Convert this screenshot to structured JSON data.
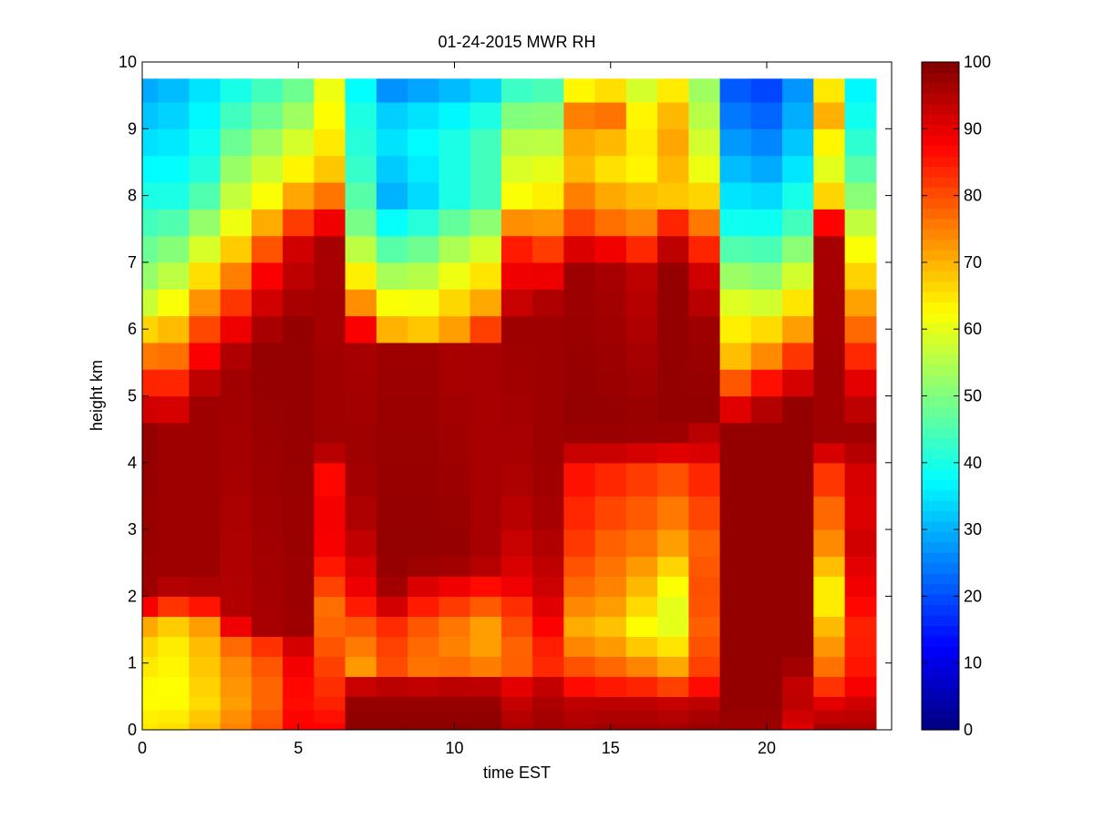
{
  "chart_data": {
    "type": "heatmap",
    "title": "01-24-2015 MWR RH",
    "xlabel": "time EST",
    "ylabel": "height km",
    "xlim": [
      0,
      24
    ],
    "ylim": [
      0,
      10
    ],
    "x_ticks": [
      0,
      5,
      10,
      15,
      20
    ],
    "y_ticks": [
      0,
      1,
      2,
      3,
      4,
      5,
      6,
      7,
      8,
      9,
      10
    ],
    "colorbar": {
      "colormap": "jet",
      "range": [
        0,
        100
      ],
      "ticks": [
        0,
        10,
        20,
        30,
        40,
        50,
        60,
        70,
        80,
        90,
        100
      ]
    },
    "x_edges": [
      0,
      0.5,
      1.5,
      2.5,
      3.5,
      4.5,
      5.5,
      6.5,
      7.5,
      8.5,
      9.5,
      10.5,
      11.5,
      12.5,
      13.5,
      14.5,
      15.5,
      16.5,
      17.5,
      18.5,
      19.5,
      20.5,
      21.5,
      22.5,
      23.5
    ],
    "y_levels": [
      0,
      0.1,
      0.3,
      0.5,
      0.8,
      1.1,
      1.4,
      1.7,
      2.0,
      2.3,
      2.6,
      3.0,
      3.5,
      4.0,
      4.3,
      4.6,
      5.0,
      5.4,
      5.8,
      6.2,
      6.6,
      7.0,
      7.4,
      7.8,
      8.2,
      8.6,
      9.0,
      9.4,
      9.75
    ],
    "column_profiles": [
      [
        [
          0,
          65
        ],
        [
          0.5,
          62
        ],
        [
          1.5,
          68
        ],
        [
          2.0,
          97
        ],
        [
          4.5,
          98
        ],
        [
          5.5,
          78
        ],
        [
          6.5,
          55
        ],
        [
          8,
          40
        ],
        [
          9.75,
          28
        ]
      ],
      [
        [
          0,
          66
        ],
        [
          0.5,
          62
        ],
        [
          1.5,
          65
        ],
        [
          1.9,
          85
        ],
        [
          2.2,
          97
        ],
        [
          4.5,
          97
        ],
        [
          5.3,
          82
        ],
        [
          6.5,
          60
        ],
        [
          8,
          40
        ],
        [
          9.75,
          30
        ]
      ],
      [
        [
          0,
          70
        ],
        [
          0.4,
          66
        ],
        [
          1.5,
          70
        ],
        [
          1.9,
          88
        ],
        [
          2.2,
          97
        ],
        [
          5.0,
          97
        ],
        [
          5.6,
          88
        ],
        [
          7,
          62
        ],
        [
          8.2,
          42
        ],
        [
          9.75,
          34
        ]
      ],
      [
        [
          0,
          75
        ],
        [
          0.4,
          72
        ],
        [
          1.2,
          75
        ],
        [
          1.7,
          95
        ],
        [
          5.5,
          97
        ],
        [
          6.2,
          86
        ],
        [
          7.5,
          62
        ],
        [
          9.75,
          38
        ]
      ],
      [
        [
          0,
          80
        ],
        [
          0.5,
          77
        ],
        [
          1.2,
          80
        ],
        [
          1.5,
          96
        ],
        [
          5.8,
          98
        ],
        [
          6.8,
          88
        ],
        [
          8.0,
          62
        ],
        [
          9.75,
          42
        ]
      ],
      [
        [
          0,
          88
        ],
        [
          0.5,
          86
        ],
        [
          1.2,
          90
        ],
        [
          1.4,
          97
        ],
        [
          6.0,
          98
        ],
        [
          7.2,
          92
        ],
        [
          8.2,
          66
        ],
        [
          9.75,
          46
        ]
      ],
      [
        [
          0,
          88
        ],
        [
          0.3,
          85
        ],
        [
          0.8,
          82
        ],
        [
          1.8,
          76
        ],
        [
          2.5,
          86
        ],
        [
          3.0,
          90
        ],
        [
          3.7,
          86
        ],
        [
          4.0,
          92
        ],
        [
          4.3,
          97
        ],
        [
          7.5,
          96
        ],
        [
          7.7,
          82
        ],
        [
          8.5,
          66
        ],
        [
          9.75,
          60
        ]
      ],
      [
        [
          0,
          99
        ],
        [
          0.6,
          97
        ],
        [
          0.9,
          72
        ],
        [
          1.5,
          78
        ],
        [
          2.0,
          88
        ],
        [
          3.0,
          95
        ],
        [
          4.0,
          97
        ],
        [
          5.8,
          96
        ],
        [
          6.0,
          88
        ],
        [
          6.5,
          70
        ],
        [
          7.5,
          50
        ],
        [
          8.5,
          42
        ],
        [
          9.3,
          40
        ],
        [
          9.75,
          36
        ]
      ],
      [
        [
          0,
          99
        ],
        [
          0.6,
          97
        ],
        [
          0.9,
          80
        ],
        [
          1.5,
          82
        ],
        [
          2.0,
          96
        ],
        [
          2.5,
          98
        ],
        [
          5.6,
          97
        ],
        [
          6.0,
          70
        ],
        [
          7.0,
          50
        ],
        [
          8.0,
          30
        ],
        [
          9.0,
          36
        ],
        [
          9.75,
          24
        ]
      ],
      [
        [
          0,
          99
        ],
        [
          0.6,
          97
        ],
        [
          0.9,
          76
        ],
        [
          1.5,
          78
        ],
        [
          2.2,
          92
        ],
        [
          2.5,
          98
        ],
        [
          5.6,
          97
        ],
        [
          6.0,
          68
        ],
        [
          7.0,
          52
        ],
        [
          8.0,
          34
        ],
        [
          9.0,
          38
        ],
        [
          9.75,
          26
        ]
      ],
      [
        [
          0,
          99
        ],
        [
          0.6,
          97
        ],
        [
          1.0,
          74
        ],
        [
          1.6,
          76
        ],
        [
          2.2,
          90
        ],
        [
          2.5,
          98
        ],
        [
          5.6,
          96
        ],
        [
          6.0,
          72
        ],
        [
          7.0,
          58
        ],
        [
          8.0,
          40
        ],
        [
          9.0,
          40
        ],
        [
          9.75,
          28
        ]
      ],
      [
        [
          0,
          99
        ],
        [
          0.6,
          97
        ],
        [
          1.0,
          72
        ],
        [
          1.6,
          72
        ],
        [
          2.2,
          88
        ],
        [
          2.5,
          96
        ],
        [
          5.6,
          96
        ],
        [
          6.2,
          74
        ],
        [
          7.0,
          62
        ],
        [
          8.0,
          44
        ],
        [
          9.0,
          44
        ],
        [
          9.75,
          30
        ]
      ],
      [
        [
          0,
          96
        ],
        [
          0.6,
          92
        ],
        [
          1.0,
          76
        ],
        [
          1.8,
          82
        ],
        [
          2.2,
          90
        ],
        [
          3.0,
          94
        ],
        [
          4.0,
          96
        ],
        [
          6.0,
          97
        ],
        [
          7.2,
          85
        ],
        [
          8.0,
          62
        ],
        [
          9.0,
          54
        ],
        [
          9.75,
          40
        ]
      ],
      [
        [
          0,
          97
        ],
        [
          0.6,
          95
        ],
        [
          1.0,
          82
        ],
        [
          2.0,
          92
        ],
        [
          3.0,
          96
        ],
        [
          4.0,
          97
        ],
        [
          6.3,
          97
        ],
        [
          7.0,
          86
        ],
        [
          8.0,
          64
        ],
        [
          9.0,
          54
        ],
        [
          9.75,
          42
        ]
      ],
      [
        [
          0,
          96
        ],
        [
          0.4,
          94
        ],
        [
          0.8,
          82
        ],
        [
          1.5,
          70
        ],
        [
          2.0,
          76
        ],
        [
          2.8,
          82
        ],
        [
          3.8,
          86
        ],
        [
          4.2,
          94
        ],
        [
          4.5,
          98
        ],
        [
          7.0,
          97
        ],
        [
          7.5,
          82
        ],
        [
          8.5,
          68
        ],
        [
          9.3,
          76
        ],
        [
          9.75,
          55
        ]
      ],
      [
        [
          0,
          97
        ],
        [
          0.4,
          94
        ],
        [
          0.8,
          80
        ],
        [
          1.5,
          68
        ],
        [
          2.0,
          74
        ],
        [
          2.8,
          78
        ],
        [
          3.8,
          84
        ],
        [
          4.2,
          94
        ],
        [
          4.5,
          98
        ],
        [
          7.0,
          96
        ],
        [
          7.5,
          78
        ],
        [
          8.5,
          64
        ],
        [
          9.3,
          78
        ],
        [
          9.75,
          58
        ]
      ],
      [
        [
          0,
          97
        ],
        [
          0.4,
          94
        ],
        [
          0.8,
          78
        ],
        [
          1.5,
          62
        ],
        [
          2.0,
          68
        ],
        [
          2.8,
          76
        ],
        [
          3.8,
          82
        ],
        [
          4.2,
          93
        ],
        [
          4.5,
          98
        ],
        [
          6.8,
          94
        ],
        [
          7.5,
          76
        ],
        [
          8.5,
          62
        ],
        [
          9.0,
          66
        ],
        [
          9.75,
          56
        ]
      ],
      [
        [
          0,
          97
        ],
        [
          0.4,
          93
        ],
        [
          0.8,
          74
        ],
        [
          1.5,
          60
        ],
        [
          2.0,
          60
        ],
        [
          2.8,
          72
        ],
        [
          3.8,
          80
        ],
        [
          4.2,
          92
        ],
        [
          4.5,
          98
        ],
        [
          7.0,
          98
        ],
        [
          7.5,
          88
        ],
        [
          8.0,
          68
        ],
        [
          9.0,
          72
        ],
        [
          9.75,
          62
        ]
      ],
      [
        [
          0,
          98
        ],
        [
          0.4,
          94
        ],
        [
          0.8,
          82
        ],
        [
          1.5,
          78
        ],
        [
          2.0,
          80
        ],
        [
          2.8,
          78
        ],
        [
          3.8,
          84
        ],
        [
          4.2,
          92
        ],
        [
          4.8,
          98
        ],
        [
          6.0,
          97
        ],
        [
          6.8,
          92
        ],
        [
          7.5,
          78
        ],
        [
          8.2,
          62
        ],
        [
          9.75,
          52
        ]
      ],
      [
        [
          0,
          97
        ],
        [
          0.4,
          98
        ],
        [
          4.5,
          98
        ],
        [
          4.9,
          88
        ],
        [
          5.5,
          70
        ],
        [
          6.5,
          58
        ],
        [
          7.5,
          40
        ],
        [
          8.5,
          30
        ],
        [
          9.75,
          20
        ]
      ],
      [
        [
          0,
          97
        ],
        [
          0.4,
          98
        ],
        [
          4.6,
          98
        ],
        [
          5.0,
          92
        ],
        [
          5.6,
          74
        ],
        [
          6.5,
          56
        ],
        [
          7.5,
          40
        ],
        [
          8.5,
          28
        ],
        [
          9.75,
          18
        ]
      ],
      [
        [
          0,
          90
        ],
        [
          0.5,
          95
        ],
        [
          0.8,
          92
        ],
        [
          1.0,
          98
        ],
        [
          4.8,
          98
        ],
        [
          5.3,
          90
        ],
        [
          6.0,
          72
        ],
        [
          6.8,
          58
        ],
        [
          7.6,
          44
        ],
        [
          8.5,
          34
        ],
        [
          9.75,
          26
        ]
      ],
      [
        [
          0,
          97
        ],
        [
          0.4,
          90
        ],
        [
          0.8,
          78
        ],
        [
          1.5,
          70
        ],
        [
          2.0,
          62
        ],
        [
          2.8,
          74
        ],
        [
          3.6,
          80
        ],
        [
          4.0,
          86
        ],
        [
          4.3,
          97
        ],
        [
          7.5,
          96
        ],
        [
          7.8,
          70
        ],
        [
          8.5,
          58
        ],
        [
          9.3,
          72
        ],
        [
          9.75,
          60
        ]
      ],
      [
        [
          0,
          96
        ],
        [
          0.4,
          92
        ],
        [
          0.8,
          86
        ],
        [
          1.5,
          84
        ],
        [
          2.0,
          88
        ],
        [
          2.8,
          92
        ],
        [
          3.6,
          90
        ],
        [
          4.0,
          94
        ],
        [
          4.5,
          97
        ],
        [
          5.2,
          90
        ],
        [
          6.2,
          74
        ],
        [
          7.2,
          62
        ],
        [
          8.2,
          48
        ],
        [
          9.0,
          40
        ],
        [
          9.75,
          36
        ]
      ]
    ]
  }
}
